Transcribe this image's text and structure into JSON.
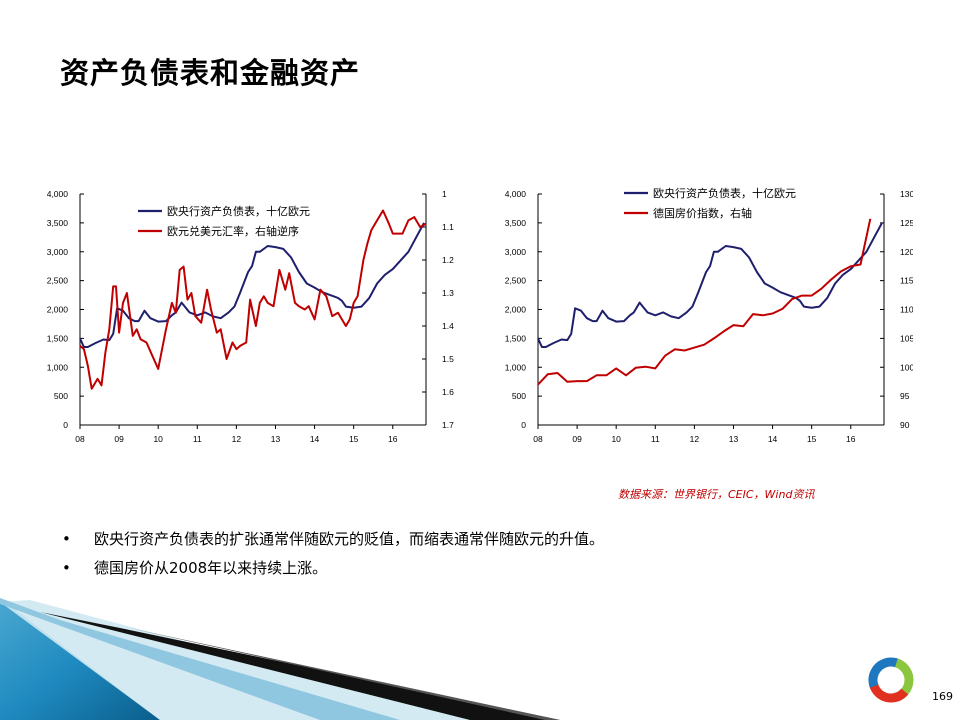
{
  "slide": {
    "title": "资产负债表和金融资产",
    "source": "数据来源：世界银行，CEIC，Wind资讯",
    "bullets": [
      "欧央行资产负债表的扩张通常伴随欧元的贬值，而缩表通常伴随欧元的升值。",
      "德国房价从2008年以来持续上涨。"
    ],
    "bullet_char": "•",
    "page_number": "169"
  },
  "colors": {
    "navy": "#1f1f6e",
    "red": "#c00000",
    "blue": "#1f8ac0",
    "logo_red": "#e03020",
    "logo_green": "#8cc63f",
    "logo_blue": "#1f77c0"
  },
  "chart_data": [
    {
      "type": "line",
      "x_ticks": [
        "08",
        "09",
        "10",
        "11",
        "12",
        "13",
        "14",
        "15",
        "16"
      ],
      "xlim": [
        2008,
        2016.85
      ],
      "y_left": {
        "ticks": [
          "0",
          "500",
          "1,000",
          "1,500",
          "2,000",
          "2,500",
          "3,000",
          "3,500",
          "4,000"
        ],
        "ylim": [
          0,
          4000
        ]
      },
      "y_right": {
        "ticks": [
          "1",
          "1.1",
          "1.2",
          "1.3",
          "1.4",
          "1.5",
          "1.6",
          "1.7"
        ],
        "ylim": [
          1.0,
          1.7
        ],
        "reversed": true
      },
      "series": [
        {
          "name": "欧央行资产负债表，十亿欧元",
          "axis": "left",
          "color": "#1f1f6e",
          "x": [
            2008.0,
            2008.1,
            2008.2,
            2008.4,
            2008.6,
            2008.75,
            2008.85,
            2008.95,
            2009.1,
            2009.25,
            2009.4,
            2009.5,
            2009.65,
            2009.8,
            2010.0,
            2010.2,
            2010.35,
            2010.45,
            2010.6,
            2010.8,
            2011.0,
            2011.2,
            2011.4,
            2011.6,
            2011.8,
            2011.95,
            2012.1,
            2012.3,
            2012.4,
            2012.5,
            2012.6,
            2012.8,
            2013.0,
            2013.2,
            2013.4,
            2013.6,
            2013.8,
            2014.0,
            2014.2,
            2014.4,
            2014.6,
            2014.7,
            2014.8,
            2015.0,
            2015.2,
            2015.4,
            2015.6,
            2015.8,
            2016.0,
            2016.2,
            2016.4,
            2016.6,
            2016.8
          ],
          "values": [
            1500,
            1350,
            1350,
            1420,
            1480,
            1470,
            1580,
            2020,
            1980,
            1850,
            1800,
            1800,
            1980,
            1850,
            1790,
            1800,
            1900,
            1950,
            2120,
            1950,
            1900,
            1950,
            1880,
            1850,
            1950,
            2050,
            2300,
            2650,
            2750,
            3000,
            3000,
            3100,
            3080,
            3050,
            2900,
            2650,
            2450,
            2380,
            2300,
            2250,
            2200,
            2150,
            2050,
            2030,
            2050,
            2200,
            2450,
            2600,
            2700,
            2850,
            3000,
            3250,
            3500
          ]
        },
        {
          "name": "欧元兑美元汇率，右轴逆序",
          "axis": "right",
          "color": "#c00000",
          "x": [
            2008.0,
            2008.1,
            2008.2,
            2008.3,
            2008.45,
            2008.55,
            2008.65,
            2008.75,
            2008.85,
            2008.92,
            2009.0,
            2009.1,
            2009.2,
            2009.35,
            2009.45,
            2009.55,
            2009.7,
            2009.85,
            2010.0,
            2010.1,
            2010.2,
            2010.35,
            2010.45,
            2010.55,
            2010.65,
            2010.75,
            2010.85,
            2010.95,
            2011.1,
            2011.25,
            2011.35,
            2011.5,
            2011.6,
            2011.75,
            2011.9,
            2012.0,
            2012.1,
            2012.25,
            2012.35,
            2012.5,
            2012.6,
            2012.7,
            2012.8,
            2012.95,
            2013.1,
            2013.25,
            2013.35,
            2013.5,
            2013.6,
            2013.75,
            2013.85,
            2014.0,
            2014.15,
            2014.3,
            2014.45,
            2014.6,
            2014.7,
            2014.8,
            2014.9,
            2015.0,
            2015.1,
            2015.25,
            2015.35,
            2015.45,
            2015.6,
            2015.75,
            2015.9,
            2016.0,
            2016.1,
            2016.25,
            2016.4,
            2016.55,
            2016.7,
            2016.85
          ],
          "values": [
            1.46,
            1.47,
            1.52,
            1.59,
            1.56,
            1.58,
            1.48,
            1.41,
            1.28,
            1.28,
            1.42,
            1.33,
            1.3,
            1.43,
            1.41,
            1.44,
            1.45,
            1.49,
            1.53,
            1.47,
            1.41,
            1.33,
            1.36,
            1.23,
            1.22,
            1.32,
            1.3,
            1.37,
            1.39,
            1.29,
            1.35,
            1.42,
            1.41,
            1.5,
            1.45,
            1.47,
            1.46,
            1.45,
            1.32,
            1.4,
            1.33,
            1.31,
            1.33,
            1.34,
            1.23,
            1.29,
            1.24,
            1.33,
            1.34,
            1.35,
            1.34,
            1.38,
            1.29,
            1.31,
            1.37,
            1.36,
            1.38,
            1.4,
            1.38,
            1.33,
            1.31,
            1.2,
            1.15,
            1.11,
            1.08,
            1.05,
            1.09,
            1.12,
            1.12,
            1.12,
            1.08,
            1.07,
            1.1,
            1.09
          ]
        }
      ]
    },
    {
      "type": "line",
      "x_ticks": [
        "08",
        "09",
        "10",
        "11",
        "12",
        "13",
        "14",
        "15",
        "16"
      ],
      "xlim": [
        2008,
        2016.85
      ],
      "y_left": {
        "ticks": [
          "0",
          "500",
          "1,000",
          "1,500",
          "2,000",
          "2,500",
          "3,000",
          "3,500",
          "4,000"
        ],
        "ylim": [
          0,
          4000
        ]
      },
      "y_right": {
        "ticks": [
          "90",
          "95",
          "100",
          "105",
          "110",
          "115",
          "120",
          "125",
          "130"
        ],
        "ylim": [
          90,
          130
        ]
      },
      "series": [
        {
          "name": "欧央行资产负债表，十亿欧元",
          "axis": "left",
          "color": "#1f1f6e",
          "x": [
            2008.0,
            2008.1,
            2008.2,
            2008.4,
            2008.6,
            2008.75,
            2008.85,
            2008.95,
            2009.1,
            2009.25,
            2009.4,
            2009.5,
            2009.65,
            2009.8,
            2010.0,
            2010.2,
            2010.35,
            2010.45,
            2010.6,
            2010.8,
            2011.0,
            2011.2,
            2011.4,
            2011.6,
            2011.8,
            2011.95,
            2012.1,
            2012.3,
            2012.4,
            2012.5,
            2012.6,
            2012.8,
            2013.0,
            2013.2,
            2013.4,
            2013.6,
            2013.8,
            2014.0,
            2014.2,
            2014.4,
            2014.6,
            2014.7,
            2014.8,
            2015.0,
            2015.2,
            2015.4,
            2015.6,
            2015.8,
            2016.0,
            2016.2,
            2016.4,
            2016.6,
            2016.8
          ],
          "values": [
            1500,
            1350,
            1350,
            1420,
            1480,
            1470,
            1580,
            2020,
            1980,
            1850,
            1800,
            1800,
            1980,
            1850,
            1790,
            1800,
            1900,
            1950,
            2120,
            1950,
            1900,
            1950,
            1880,
            1850,
            1950,
            2050,
            2300,
            2650,
            2750,
            3000,
            3000,
            3100,
            3080,
            3050,
            2900,
            2650,
            2450,
            2380,
            2300,
            2250,
            2200,
            2150,
            2050,
            2030,
            2050,
            2200,
            2450,
            2600,
            2700,
            2850,
            3000,
            3250,
            3500
          ]
        },
        {
          "name": "德国房价指数，右轴",
          "axis": "right",
          "color": "#c00000",
          "x": [
            2008.0,
            2008.25,
            2008.5,
            2008.75,
            2009.0,
            2009.25,
            2009.5,
            2009.75,
            2010.0,
            2010.25,
            2010.5,
            2010.75,
            2011.0,
            2011.25,
            2011.5,
            2011.75,
            2012.0,
            2012.25,
            2012.5,
            2012.75,
            2013.0,
            2013.25,
            2013.5,
            2013.75,
            2014.0,
            2014.25,
            2014.5,
            2014.75,
            2015.0,
            2015.25,
            2015.5,
            2015.75,
            2016.0,
            2016.25,
            2016.5
          ],
          "values": [
            97.0,
            98.8,
            99.0,
            97.5,
            97.6,
            97.6,
            98.6,
            98.6,
            99.8,
            98.6,
            99.9,
            100.1,
            99.8,
            102.0,
            103.1,
            102.9,
            103.4,
            103.9,
            105.0,
            106.2,
            107.3,
            107.1,
            109.2,
            109.0,
            109.3,
            110.1,
            111.8,
            112.4,
            112.4,
            113.6,
            115.2,
            116.6,
            117.5,
            117.8,
            125.7
          ]
        }
      ]
    }
  ]
}
